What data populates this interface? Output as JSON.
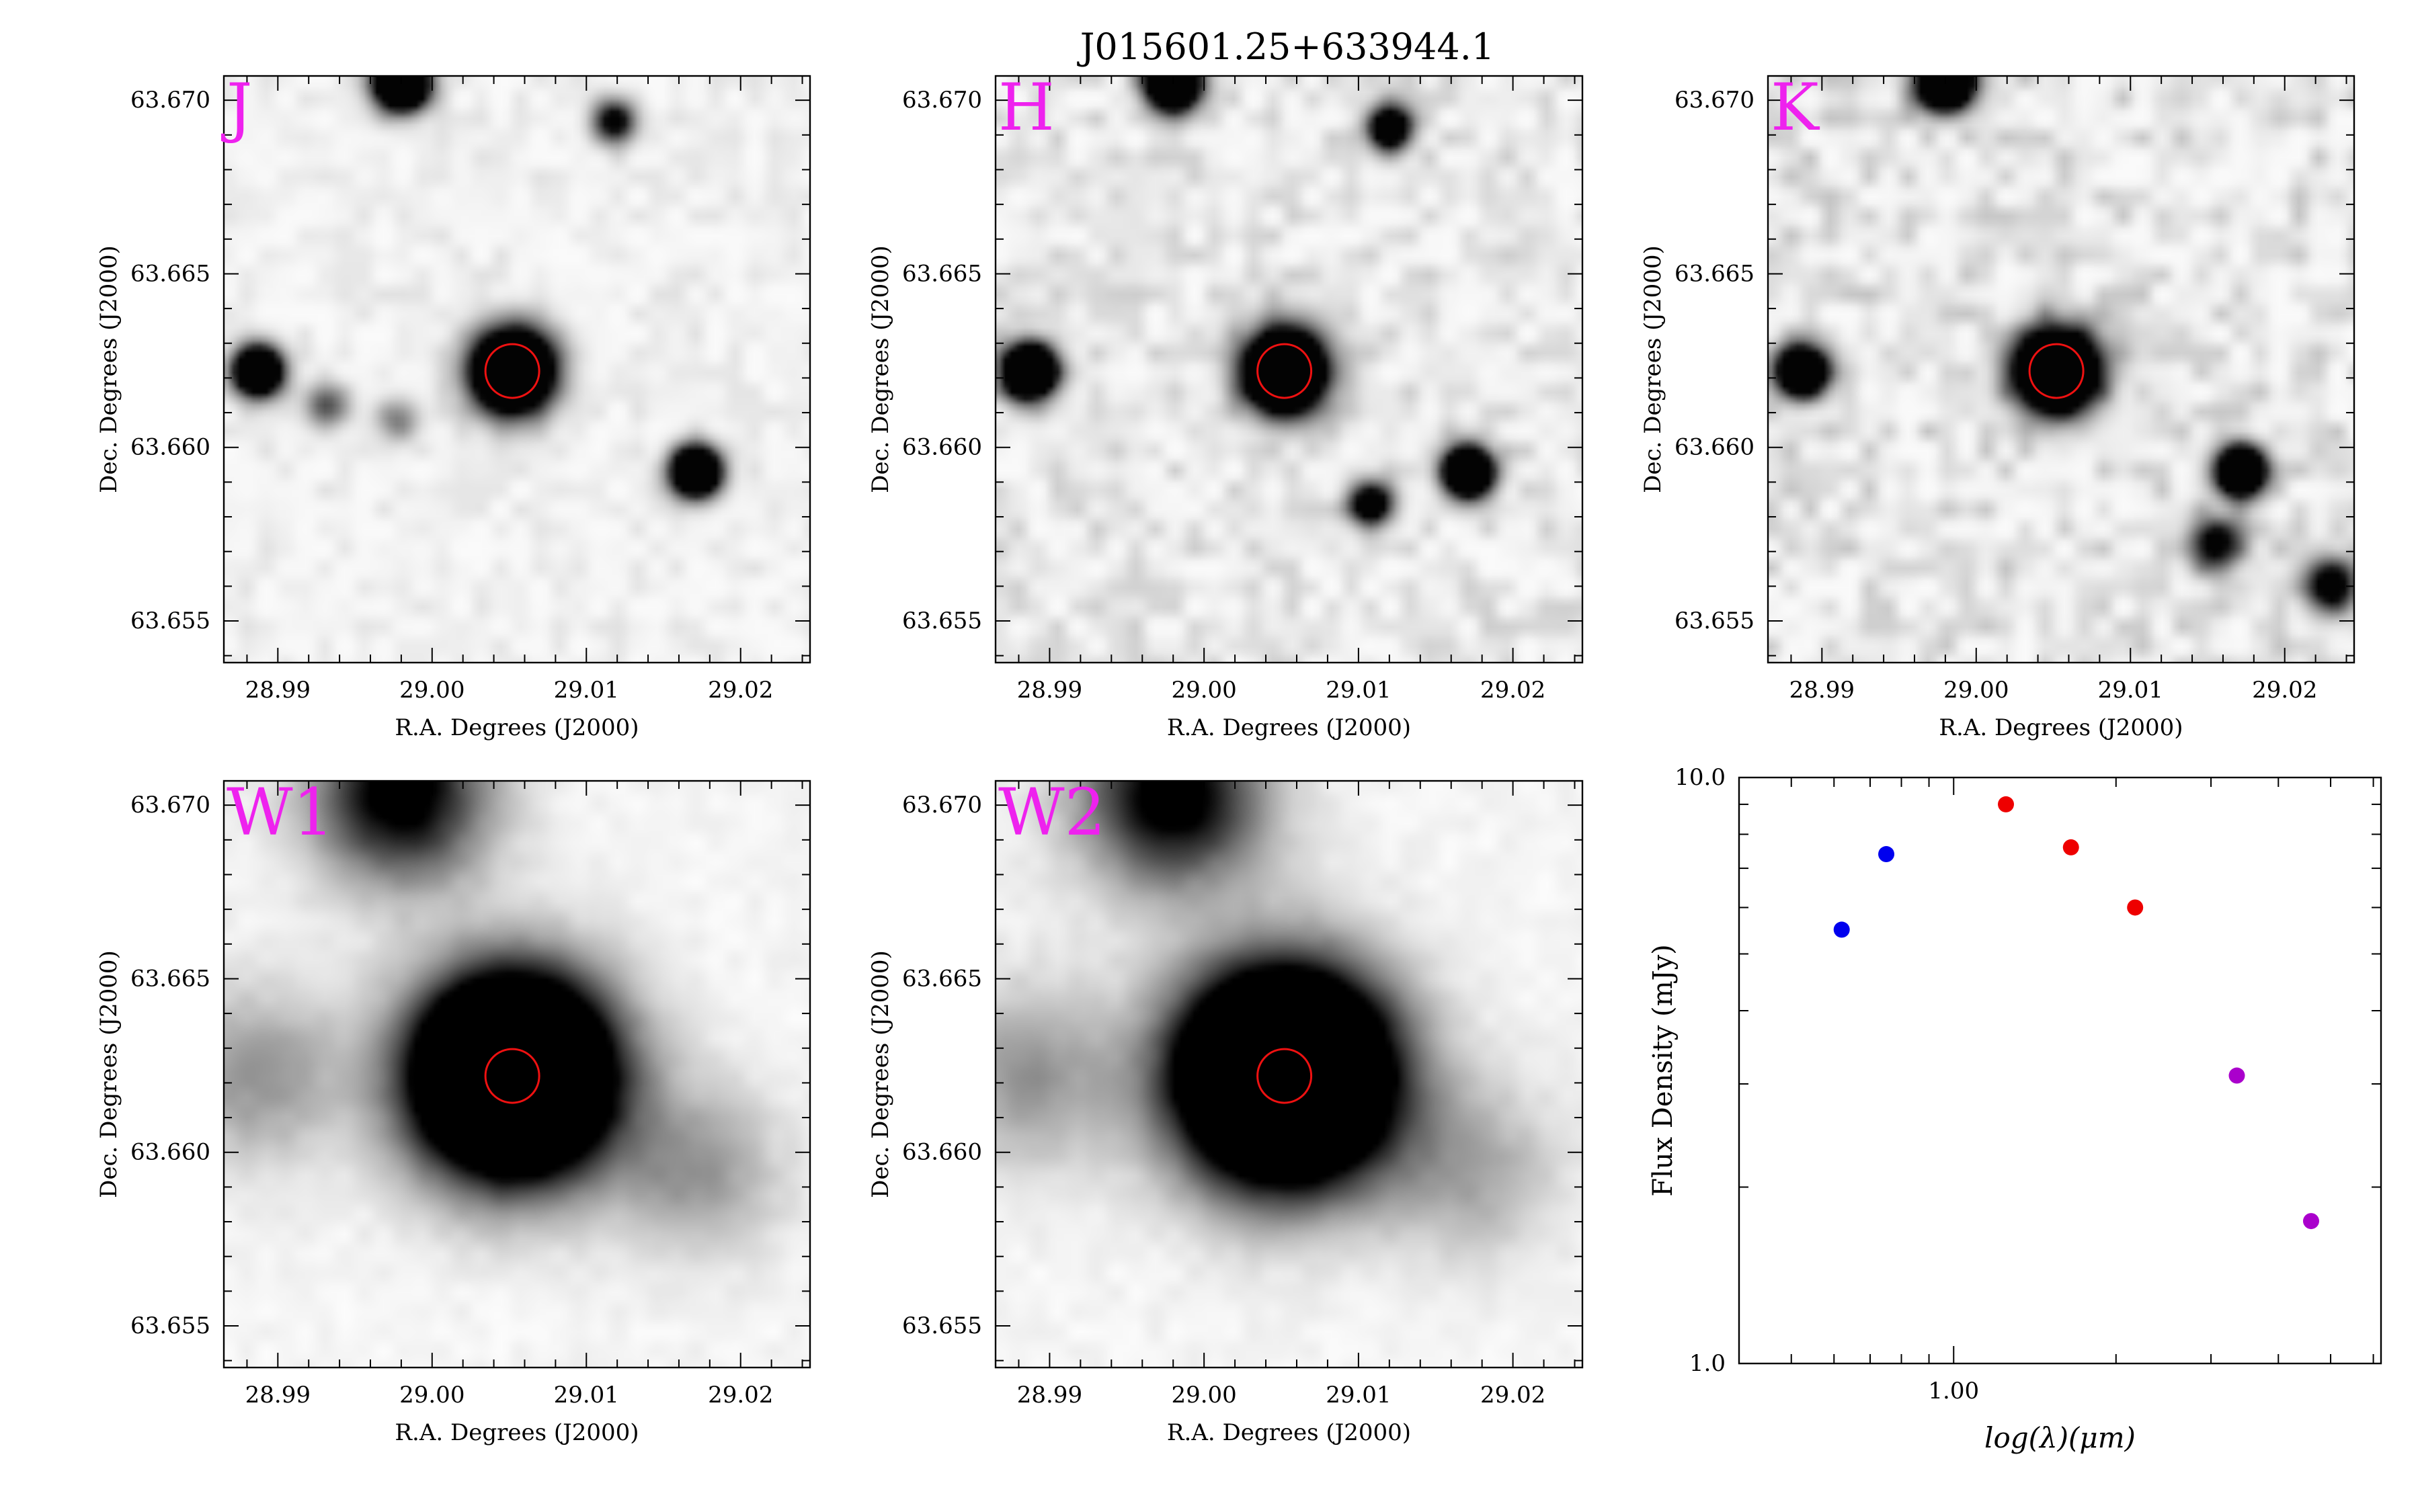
{
  "figure": {
    "title": "J015601.25+633944.1"
  },
  "chart_data": [
    {
      "type": "heatmap",
      "band": "J",
      "xlabel": "R.A. Degrees (J2000)",
      "ylabel": "Dec. Degrees (J2000)",
      "xlim": [
        28.9865,
        29.0245
      ],
      "ylim": [
        63.6538,
        63.6707
      ],
      "x_ticks": [
        "28.99",
        "29.00",
        "29.01",
        "29.02"
      ],
      "y_ticks": [
        "63.655",
        "63.660",
        "63.665",
        "63.670"
      ],
      "target": {
        "ra": 29.0052,
        "dec": 63.6622
      },
      "sources": [
        {
          "ra": 29.0052,
          "dec": 63.6622,
          "flux": 1.0,
          "fwhm": 0.0018
        },
        {
          "ra": 28.9887,
          "dec": 63.6622,
          "flux": 0.8,
          "fwhm": 0.0011
        },
        {
          "ra": 29.0171,
          "dec": 63.6593,
          "flux": 0.85,
          "fwhm": 0.0011
        },
        {
          "ra": 28.998,
          "dec": 63.6705,
          "flux": 0.9,
          "fwhm": 0.0012
        },
        {
          "ra": 29.0118,
          "dec": 63.6694,
          "flux": 0.35,
          "fwhm": 0.001
        },
        {
          "ra": 28.9931,
          "dec": 63.6612,
          "flux": 0.2,
          "fwhm": 0.001
        },
        {
          "ra": 28.9978,
          "dec": 63.6608,
          "flux": 0.15,
          "fwhm": 0.001
        }
      ]
    },
    {
      "type": "heatmap",
      "band": "H",
      "xlabel": "R.A. Degrees (J2000)",
      "ylabel": "Dec. Degrees (J2000)",
      "xlim": [
        28.9865,
        29.0245
      ],
      "ylim": [
        63.6538,
        63.6707
      ],
      "x_ticks": [
        "28.99",
        "29.00",
        "29.01",
        "29.02"
      ],
      "y_ticks": [
        "63.655",
        "63.660",
        "63.665",
        "63.670"
      ],
      "target": {
        "ra": 29.0052,
        "dec": 63.6622
      },
      "sources": [
        {
          "ra": 29.0052,
          "dec": 63.6622,
          "flux": 1.0,
          "fwhm": 0.0018
        },
        {
          "ra": 28.9887,
          "dec": 63.6622,
          "flux": 0.9,
          "fwhm": 0.0012
        },
        {
          "ra": 29.0171,
          "dec": 63.6593,
          "flux": 0.85,
          "fwhm": 0.0011
        },
        {
          "ra": 28.998,
          "dec": 63.6705,
          "flux": 0.9,
          "fwhm": 0.0012
        },
        {
          "ra": 29.012,
          "dec": 63.6692,
          "flux": 0.55,
          "fwhm": 0.001
        },
        {
          "ra": 29.0108,
          "dec": 63.6584,
          "flux": 0.45,
          "fwhm": 0.001
        }
      ]
    },
    {
      "type": "heatmap",
      "band": "K",
      "xlabel": "R.A. Degrees (J2000)",
      "ylabel": "Dec. Degrees (J2000)",
      "xlim": [
        28.9865,
        29.0245
      ],
      "ylim": [
        63.6538,
        63.6707
      ],
      "x_ticks": [
        "28.99",
        "29.00",
        "29.01",
        "29.02"
      ],
      "y_ticks": [
        "63.655",
        "63.660",
        "63.665",
        "63.670"
      ],
      "target": {
        "ra": 29.0052,
        "dec": 63.6622
      },
      "sources": [
        {
          "ra": 29.0052,
          "dec": 63.6622,
          "flux": 1.0,
          "fwhm": 0.0018
        },
        {
          "ra": 28.9887,
          "dec": 63.6622,
          "flux": 0.8,
          "fwhm": 0.0011
        },
        {
          "ra": 29.0171,
          "dec": 63.6593,
          "flux": 0.8,
          "fwhm": 0.0011
        },
        {
          "ra": 28.998,
          "dec": 63.6705,
          "flux": 0.9,
          "fwhm": 0.0012
        },
        {
          "ra": 29.0155,
          "dec": 63.6572,
          "flux": 0.35,
          "fwhm": 0.0012
        },
        {
          "ra": 29.023,
          "dec": 63.656,
          "flux": 0.4,
          "fwhm": 0.0012
        }
      ]
    },
    {
      "type": "heatmap",
      "band": "W1",
      "xlabel": "R.A. Degrees (J2000)",
      "ylabel": "Dec. Degrees (J2000)",
      "xlim": [
        28.9865,
        29.0245
      ],
      "ylim": [
        63.6538,
        63.6707
      ],
      "x_ticks": [
        "28.99",
        "29.00",
        "29.01",
        "29.02"
      ],
      "y_ticks": [
        "63.655",
        "63.660",
        "63.665",
        "63.670"
      ],
      "target": {
        "ra": 29.0052,
        "dec": 63.6622
      },
      "sources": [
        {
          "ra": 29.0052,
          "dec": 63.6622,
          "flux": 1.0,
          "fwhm": 0.0045
        },
        {
          "ra": 28.998,
          "dec": 63.6703,
          "flux": 0.35,
          "fwhm": 0.004
        },
        {
          "ra": 28.9887,
          "dec": 63.6622,
          "flux": 0.12,
          "fwhm": 0.004
        },
        {
          "ra": 29.0171,
          "dec": 63.6595,
          "flux": 0.12,
          "fwhm": 0.0038
        }
      ]
    },
    {
      "type": "heatmap",
      "band": "W2",
      "xlabel": "R.A. Degrees (J2000)",
      "ylabel": "Dec. Degrees (J2000)",
      "xlim": [
        28.9865,
        29.0245
      ],
      "ylim": [
        63.6538,
        63.6707
      ],
      "x_ticks": [
        "28.99",
        "29.00",
        "29.01",
        "29.02"
      ],
      "y_ticks": [
        "63.655",
        "63.660",
        "63.665",
        "63.670"
      ],
      "target": {
        "ra": 29.0052,
        "dec": 63.6622
      },
      "sources": [
        {
          "ra": 29.0052,
          "dec": 63.6622,
          "flux": 1.0,
          "fwhm": 0.0048
        },
        {
          "ra": 28.998,
          "dec": 63.6703,
          "flux": 0.35,
          "fwhm": 0.0042
        },
        {
          "ra": 28.9887,
          "dec": 63.6622,
          "flux": 0.12,
          "fwhm": 0.0042
        },
        {
          "ra": 29.0171,
          "dec": 63.6595,
          "flux": 0.1,
          "fwhm": 0.004
        }
      ]
    },
    {
      "type": "scatter",
      "xlabel": "log(λ)(μm)",
      "ylabel": "Flux Density (mJy)",
      "xscale": "log",
      "yscale": "log",
      "xlim": [
        0.4,
        6.2
      ],
      "ylim": [
        1.0,
        10.0
      ],
      "x_ticks": [
        "1.00"
      ],
      "y_ticks": [
        "1.0",
        "10.0"
      ],
      "series": [
        {
          "color": "#0000ee",
          "points": [
            {
              "x": 0.62,
              "y": 5.5
            },
            {
              "x": 0.75,
              "y": 7.4
            }
          ]
        },
        {
          "color": "#ee0000",
          "points": [
            {
              "x": 1.25,
              "y": 9.0
            },
            {
              "x": 1.65,
              "y": 7.6
            },
            {
              "x": 2.17,
              "y": 6.0
            }
          ]
        },
        {
          "color": "#aa00cc",
          "points": [
            {
              "x": 3.35,
              "y": 3.1
            },
            {
              "x": 4.6,
              "y": 1.75
            }
          ]
        }
      ]
    }
  ]
}
